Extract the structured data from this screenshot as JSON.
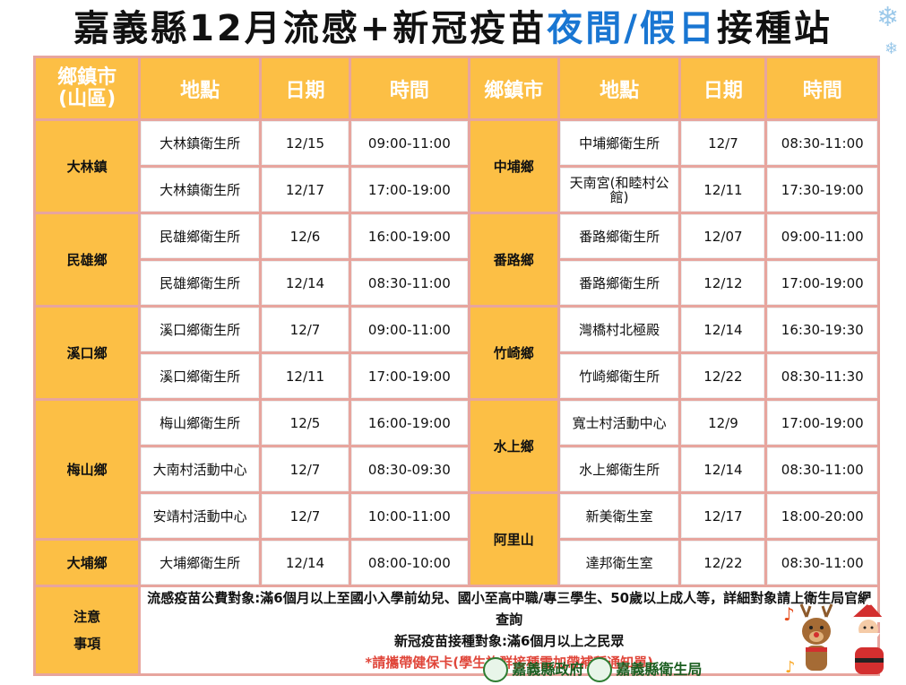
{
  "title": {
    "prefix": "嘉義縣12月流感+新冠疫苗",
    "highlight": "夜間/假日",
    "suffix": "接種站"
  },
  "headers": {
    "town": "鄉鎮市\n(山區)",
    "place": "地點",
    "date": "日期",
    "time": "時間",
    "town2": "鄉鎮市",
    "place2": "地點",
    "date2": "日期",
    "time2": "時間"
  },
  "towns": {
    "dalin": "大林鎮",
    "minxiong": "民雄鄉",
    "xikou": "溪口鄉",
    "meishan": "梅山鄉",
    "dapu": "大埔鄉",
    "zhongpu": "中埔鄉",
    "fanlu": "番路鄉",
    "zhuqi": "竹崎鄉",
    "shuishang": "水上鄉",
    "alishan": "阿里山"
  },
  "rows": [
    {
      "left": {
        "place": "大林鎮衛生所",
        "date": "12/15",
        "time": "09:00-11:00"
      },
      "right": {
        "place": "中埔鄉衛生所",
        "date": "12/7",
        "time": "08:30-11:00"
      }
    },
    {
      "left": {
        "place": "大林鎮衛生所",
        "date": "12/17",
        "time": "17:00-19:00"
      },
      "right": {
        "place": "天南宮(和睦村公館)",
        "date": "12/11",
        "time": "17:30-19:00"
      }
    },
    {
      "left": {
        "place": "民雄鄉衛生所",
        "date": "12/6",
        "time": "16:00-19:00"
      },
      "right": {
        "place": "番路鄉衛生所",
        "date": "12/07",
        "time": "09:00-11:00"
      }
    },
    {
      "left": {
        "place": "民雄鄉衛生所",
        "date": "12/14",
        "time": "08:30-11:00"
      },
      "right": {
        "place": "番路鄉衛生所",
        "date": "12/12",
        "time": "17:00-19:00"
      }
    },
    {
      "left": {
        "place": "溪口鄉衛生所",
        "date": "12/7",
        "time": "09:00-11:00"
      },
      "right": {
        "place": "灣橋村北極殿",
        "date": "12/14",
        "time": "16:30-19:30"
      }
    },
    {
      "left": {
        "place": "溪口鄉衛生所",
        "date": "12/11",
        "time": "17:00-19:00"
      },
      "right": {
        "place": "竹崎鄉衛生所",
        "date": "12/22",
        "time": "08:30-11:30"
      }
    },
    {
      "left": {
        "place": "梅山鄉衛生所",
        "date": "12/5",
        "time": "16:00-19:00"
      },
      "right": {
        "place": "寬士村活動中心",
        "date": "12/9",
        "time": "17:00-19:00"
      }
    },
    {
      "left": {
        "place": "大南村活動中心",
        "date": "12/7",
        "time": "08:30-09:30"
      },
      "right": {
        "place": "水上鄉衛生所",
        "date": "12/14",
        "time": "08:30-11:00"
      }
    },
    {
      "left": {
        "place": "安靖村活動中心",
        "date": "12/7",
        "time": "10:00-11:00"
      },
      "right": {
        "place": "新美衛生室",
        "date": "12/17",
        "time": "18:00-20:00"
      }
    },
    {
      "left": {
        "place": "大埔鄉衛生所",
        "date": "12/14",
        "time": "08:00-10:00"
      },
      "right": {
        "place": "達邦衛生室",
        "date": "12/22",
        "time": "08:30-11:00"
      }
    }
  ],
  "notes": {
    "heading": "注意\n事項",
    "line1": "流感疫苗公費對象:滿6個月以上至國小入學前幼兒、國小至高中職/專三學生、50歲以上成人等，詳細對象請上衛生局官網查詢",
    "line2": "新冠疫苗接種對象:滿6個月以上之民眾",
    "line3": "*請攜帶健保卡(學生族群接種需加帶補種通知單)"
  },
  "logos": {
    "gov": "嘉義縣政府",
    "health": "嘉義縣衛生局"
  },
  "icons": [
    "snowflake-icon",
    "government-logo-icon",
    "health-bureau-logo-icon",
    "reindeer-icon",
    "santa-icon",
    "music-note-icon"
  ],
  "colors": {
    "header": "#fcbf45",
    "title_highlight": "#1976d2",
    "grid": "#e7a59e",
    "note_red": "#e0463a"
  }
}
